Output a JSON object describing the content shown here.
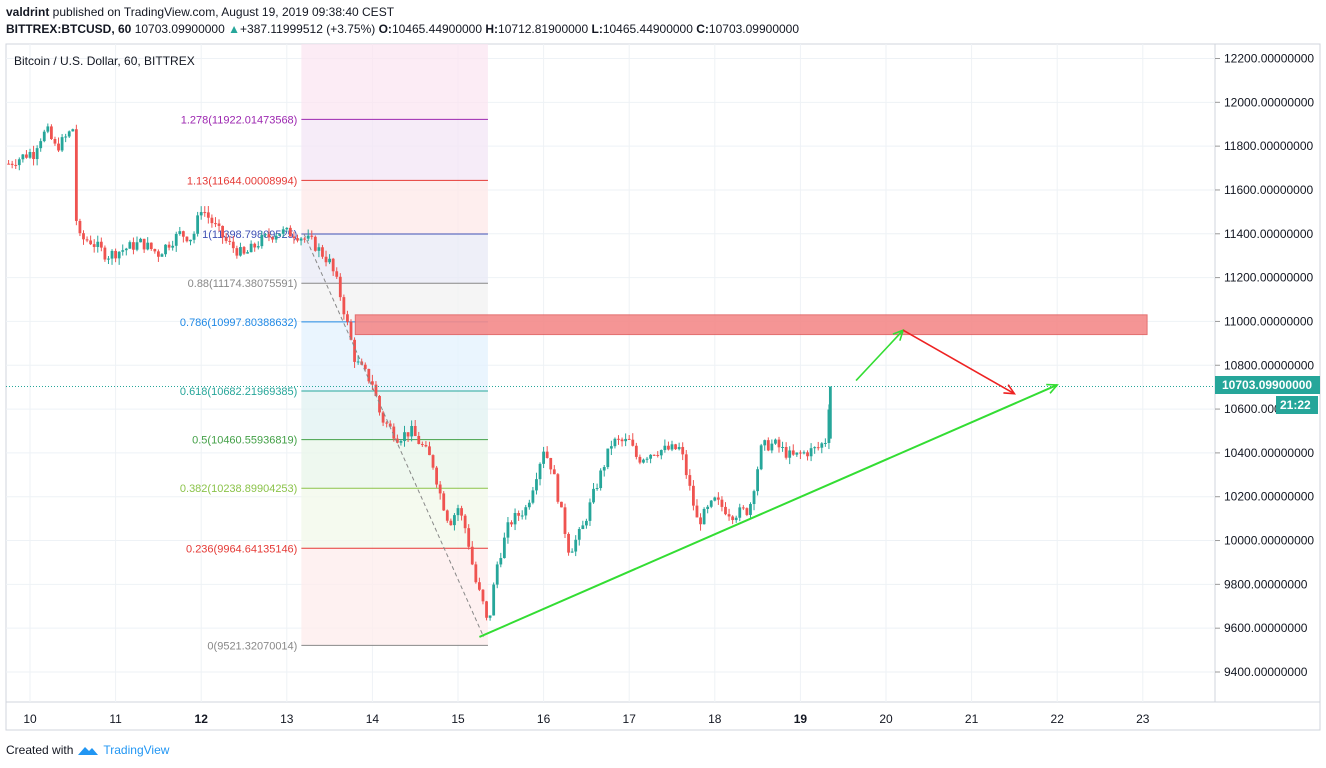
{
  "header": {
    "line1_author": "valdrint",
    "line1_text": " published on TradingView.com, August 19, 2019 09:38:40 CEST",
    "symbol": "BITTREX:BTCUSD, 60",
    "last": "10703.09900000",
    "change_arrow": "▲",
    "change": "+387.11999512 (+3.75%)",
    "o_label": "O:",
    "o": "10465.44900000",
    "h_label": "H:",
    "h": "10712.81900000",
    "l_label": "L:",
    "l": "10465.44900000",
    "c_label": "C:",
    "c": "10703.09900000"
  },
  "legend": "Bitcoin / U.S. Dollar, 60, BITTREX",
  "price_badge": "10703.09900000",
  "countdown": "21:22",
  "footer": {
    "created": "Created with",
    "brand": "TradingView"
  },
  "colors": {
    "up": "#26a69a",
    "down": "#ef5350",
    "grid": "#eef2f6",
    "trend": "#33dd33",
    "arrow_red": "#ee2222",
    "zone": "#f48a8a"
  },
  "chart_data": {
    "type": "candlestick",
    "ylim": [
      9300,
      12300
    ],
    "yticks": [
      "12200.00000000",
      "12000.00000000",
      "11800.00000000",
      "11600.00000000",
      "11400.00000000",
      "11200.00000000",
      "11000.00000000",
      "10800.00000000",
      "10600.00000000",
      "10400.00000000",
      "10200.00000000",
      "10000.00000000",
      "9800.00000000",
      "9600.00000000",
      "9400.00000000"
    ],
    "xticks": [
      "10",
      "11",
      "12",
      "13",
      "14",
      "15",
      "16",
      "17",
      "18",
      "19",
      "20",
      "21",
      "22",
      "23"
    ],
    "last_price": 10703.099,
    "fib_levels": [
      {
        "label": "1.278(11922.01473568)",
        "value": 11922.01,
        "color": "#9c27b0"
      },
      {
        "label": "1.13(11644.00008994)",
        "value": 11644.0,
        "color": "#e53935"
      },
      {
        "label": "1(11398.79809525)",
        "value": 11398.8,
        "color": "#3f51b5"
      },
      {
        "label": "0.88(11174.38075591)",
        "value": 11174.38,
        "color": "#888888"
      },
      {
        "label": "0.786(10997.80388632)",
        "value": 10997.8,
        "color": "#1e88e5"
      },
      {
        "label": "0.618(10682.21969385)",
        "value": 10682.22,
        "color": "#26a69a"
      },
      {
        "label": "0.5(10460.55936819)",
        "value": 10460.56,
        "color": "#43a047"
      },
      {
        "label": "0.382(10238.89904253)",
        "value": 10238.9,
        "color": "#8bc34a"
      },
      {
        "label": "0.236(9964.64135146)",
        "value": 9964.64,
        "color": "#e53935"
      },
      {
        "label": "0(9521.32070014)",
        "value": 9521.32,
        "color": "#888888"
      }
    ],
    "resistance_zone": [
      10940,
      11030
    ],
    "close_path": [
      [
        10.0,
        11720
      ],
      [
        10.1,
        11830
      ],
      [
        10.2,
        11870
      ],
      [
        10.3,
        11790
      ],
      [
        10.4,
        11830
      ],
      [
        10.5,
        11880
      ],
      [
        10.55,
        11380
      ],
      [
        10.7,
        11370
      ],
      [
        10.9,
        11300
      ],
      [
        11.1,
        11330
      ],
      [
        11.3,
        11360
      ],
      [
        11.5,
        11310
      ],
      [
        11.6,
        11350
      ],
      [
        11.75,
        11400
      ],
      [
        11.9,
        11380
      ],
      [
        12.0,
        11520
      ],
      [
        12.15,
        11440
      ],
      [
        12.3,
        11360
      ],
      [
        12.5,
        11300
      ],
      [
        12.7,
        11370
      ],
      [
        12.9,
        11410
      ],
      [
        13.1,
        11400
      ],
      [
        13.3,
        11360
      ],
      [
        13.5,
        11270
      ],
      [
        13.6,
        11160
      ],
      [
        13.7,
        11000
      ],
      [
        13.8,
        10820
      ],
      [
        14.0,
        10720
      ],
      [
        14.1,
        10560
      ],
      [
        14.3,
        10470
      ],
      [
        14.45,
        10500
      ],
      [
        14.6,
        10420
      ],
      [
        14.7,
        10360
      ],
      [
        14.8,
        10200
      ],
      [
        14.9,
        10080
      ],
      [
        15.0,
        10150
      ],
      [
        15.1,
        10040
      ],
      [
        15.2,
        9820
      ],
      [
        15.3,
        9700
      ],
      [
        15.35,
        9600
      ],
      [
        15.45,
        9880
      ],
      [
        15.6,
        10080
      ],
      [
        15.8,
        10150
      ],
      [
        16.0,
        10420
      ],
      [
        16.1,
        10330
      ],
      [
        16.3,
        9950
      ],
      [
        16.45,
        10050
      ],
      [
        16.6,
        10230
      ],
      [
        16.8,
        10450
      ],
      [
        17.0,
        10450
      ],
      [
        17.1,
        10370
      ],
      [
        17.3,
        10410
      ],
      [
        17.6,
        10420
      ],
      [
        17.8,
        10080
      ],
      [
        18.0,
        10180
      ],
      [
        18.2,
        10120
      ],
      [
        18.4,
        10140
      ],
      [
        18.55,
        10430
      ],
      [
        18.7,
        10440
      ],
      [
        18.9,
        10380
      ],
      [
        19.05,
        10400
      ],
      [
        19.2,
        10420
      ],
      [
        19.3,
        10460
      ],
      [
        19.35,
        10700
      ]
    ],
    "trendline": [
      [
        15.25,
        9560
      ],
      [
        22.0,
        10710
      ]
    ],
    "drawn_arrows": [
      {
        "color": "green",
        "from": [
          19.65,
          10730
        ],
        "to": [
          20.2,
          10960
        ]
      },
      {
        "color": "red",
        "from": [
          20.2,
          10960
        ],
        "to": [
          21.5,
          10670
        ]
      }
    ]
  }
}
